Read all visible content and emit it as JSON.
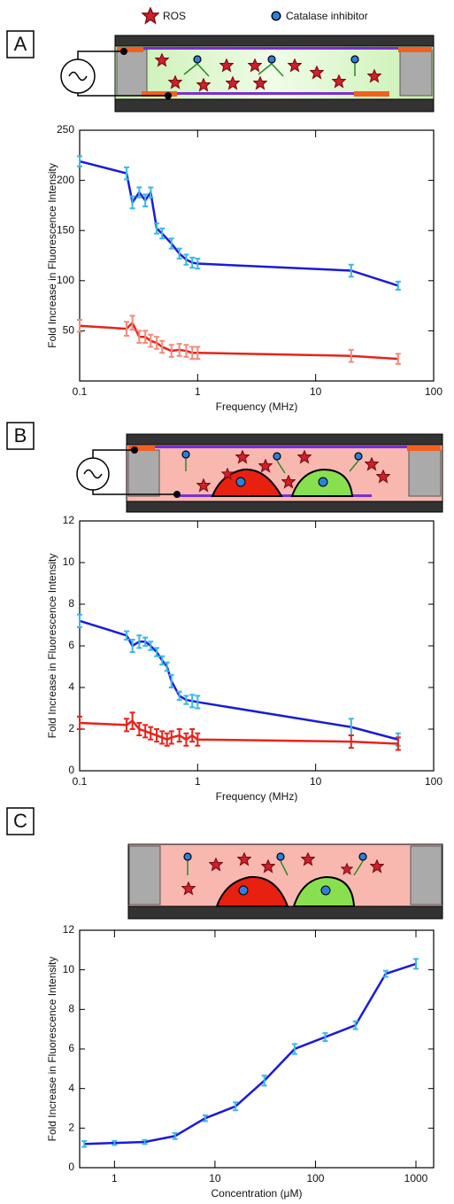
{
  "panel_labels": [
    "A",
    "B",
    "C"
  ],
  "legend": {
    "ros": "ROS",
    "inhibitor": "Catalase inhibitor"
  },
  "chart_data": [
    {
      "type": "line",
      "log_x": true,
      "xlabel": "Frequency (MHz)",
      "ylabel": "Fold Increase in Fluorescence Intensity",
      "x": [
        0.1,
        0.25,
        0.28,
        0.32,
        0.36,
        0.4,
        0.45,
        0.5,
        0.6,
        0.7,
        0.8,
        0.9,
        1,
        20,
        50
      ],
      "xlim": [
        0.1,
        100
      ],
      "xticks": [
        0.1,
        1,
        10,
        100
      ],
      "ylim": [
        0,
        250
      ],
      "yticks": [
        50,
        100,
        150,
        200,
        250
      ],
      "series": [
        {
          "color": "#1a1adb",
          "error_color": "#3ab7e6",
          "values": [
            219,
            207,
            178,
            188,
            180,
            188,
            152,
            147,
            137,
            127,
            121,
            118,
            117,
            110,
            95
          ],
          "errors": [
            5,
            6,
            6,
            5,
            6,
            5,
            5,
            5,
            5,
            5,
            5,
            5,
            5,
            6,
            4
          ]
        },
        {
          "color": "#e8231a",
          "error_color": "#f28a7a",
          "values": [
            55,
            52,
            58,
            44,
            44,
            40,
            38,
            34,
            30,
            31,
            30,
            28,
            28,
            25,
            22
          ],
          "errors": [
            6,
            7,
            7,
            6,
            6,
            6,
            6,
            6,
            6,
            6,
            6,
            6,
            6,
            6,
            5
          ]
        }
      ]
    },
    {
      "type": "line",
      "log_x": true,
      "xlabel": "Frequency (MHz)",
      "ylabel": "Fold Increase in Fluorescence Intensity",
      "x": [
        0.1,
        0.25,
        0.28,
        0.32,
        0.36,
        0.4,
        0.45,
        0.5,
        0.55,
        0.6,
        0.7,
        0.8,
        0.9,
        1,
        20,
        50
      ],
      "xlim": [
        0.1,
        100
      ],
      "xticks": [
        0.1,
        1,
        10,
        100
      ],
      "ylim": [
        0,
        12
      ],
      "yticks": [
        0,
        2,
        4,
        6,
        8,
        10,
        12
      ],
      "series": [
        {
          "color": "#1a1adb",
          "error_color": "#3ab7e6",
          "values": [
            7.2,
            6.5,
            6.0,
            6.2,
            6.2,
            6.0,
            5.7,
            5.3,
            5.0,
            4.3,
            3.6,
            3.4,
            3.35,
            3.3,
            2.1,
            1.5
          ],
          "errors": [
            0.3,
            0.2,
            0.3,
            0.3,
            0.2,
            0.2,
            0.2,
            0.2,
            0.2,
            0.3,
            0.2,
            0.2,
            0.3,
            0.3,
            0.4,
            0.3
          ]
        },
        {
          "color": "#e8231a",
          "error_color": "#e8231a",
          "values": [
            2.3,
            2.2,
            2.4,
            2.0,
            1.9,
            1.8,
            1.7,
            1.6,
            1.5,
            1.6,
            1.7,
            1.5,
            1.7,
            1.5,
            1.4,
            1.3
          ],
          "errors": [
            0.3,
            0.3,
            0.4,
            0.3,
            0.3,
            0.3,
            0.3,
            0.3,
            0.3,
            0.3,
            0.3,
            0.3,
            0.3,
            0.3,
            0.3,
            0.3
          ]
        }
      ]
    },
    {
      "type": "line",
      "log_x": true,
      "xlabel": "Concentration (μM)",
      "ylabel": "Fold Increase in Fluorescence Intensity",
      "x": [
        0.5,
        1,
        2,
        4,
        8,
        16,
        31,
        62,
        125,
        250,
        500,
        1000
      ],
      "xlim": [
        0.45,
        1500
      ],
      "xticks": [
        1,
        10,
        100,
        1000
      ],
      "ylim": [
        0,
        12
      ],
      "yticks": [
        0,
        2,
        4,
        6,
        8,
        10,
        12
      ],
      "series": [
        {
          "color": "#1a1adb",
          "error_color": "#3ab7e6",
          "values": [
            1.2,
            1.25,
            1.3,
            1.6,
            2.5,
            3.1,
            4.4,
            6.0,
            6.6,
            7.2,
            9.8,
            10.3
          ],
          "errors": [
            0.15,
            0.1,
            0.1,
            0.15,
            0.15,
            0.2,
            0.25,
            0.25,
            0.2,
            0.2,
            0.15,
            0.25
          ]
        }
      ]
    }
  ]
}
